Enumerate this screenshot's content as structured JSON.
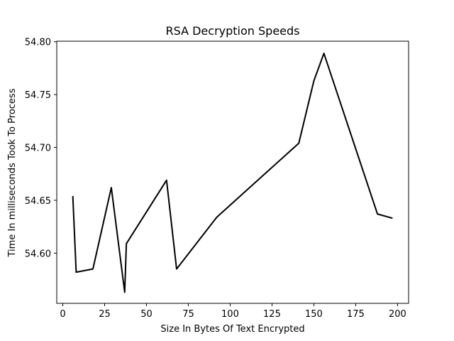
{
  "chart_data": {
    "type": "line",
    "title": "RSA Decryption Speeds",
    "xlabel": "Size In Bytes Of Text Encrypted",
    "ylabel": "Time In milliseconds Took To Process",
    "xlim": [
      -3.6,
      206.6
    ],
    "ylim": [
      54.5525,
      54.8005
    ],
    "x_ticks": [
      0,
      25,
      50,
      75,
      100,
      125,
      150,
      175,
      200
    ],
    "x_tick_labels": [
      "0",
      "25",
      "50",
      "75",
      "100",
      "125",
      "150",
      "175",
      "200"
    ],
    "y_ticks": [
      54.6,
      54.65,
      54.7,
      54.75,
      54.8
    ],
    "y_tick_labels": [
      "54.60",
      "54.65",
      "54.70",
      "54.75",
      "54.80"
    ],
    "grid": false,
    "legend": "none",
    "series": [
      {
        "color": "#000000",
        "x": [
          6,
          8,
          18,
          29,
          37,
          38,
          62,
          68,
          92,
          141,
          150,
          156,
          188,
          197
        ],
        "y": [
          54.654,
          54.582,
          54.585,
          54.662,
          54.563,
          54.609,
          54.669,
          54.585,
          54.634,
          54.704,
          54.763,
          54.789,
          54.637,
          54.633
        ]
      }
    ]
  }
}
